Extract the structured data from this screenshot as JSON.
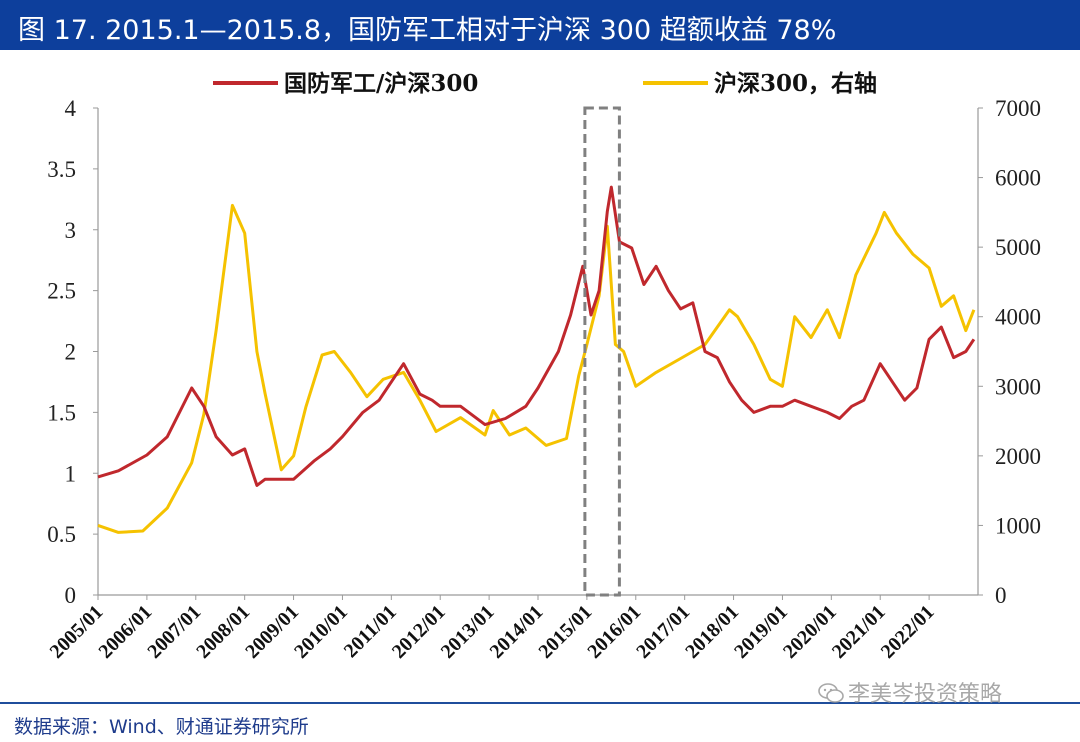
{
  "title": "图 17. 2015.1—2015.8，国防军工相对于沪深 300 超额收益 78%",
  "source": "数据来源：Wind、财通证券研究所",
  "watermark": "李美岑投资策略",
  "colors": {
    "title_bg": "#0d3f9c",
    "series_ratio": "#c0282d",
    "series_index": "#f5c200",
    "highlight_box": "#808080"
  },
  "chart_data": {
    "type": "line",
    "grid": false,
    "legend_position": "top",
    "x_tick_labels": [
      "2005/01",
      "2006/01",
      "2007/01",
      "2008/01",
      "2009/01",
      "2010/01",
      "2011/01",
      "2012/01",
      "2013/01",
      "2014/01",
      "2015/01",
      "2016/01",
      "2017/01",
      "2018/01",
      "2019/01",
      "2020/01",
      "2021/01",
      "2022/01"
    ],
    "x_range": [
      "2005/01",
      "2022/12"
    ],
    "y_left": {
      "ticks": [
        "0",
        "0.5",
        "1",
        "1.5",
        "2",
        "2.5",
        "3",
        "3.5",
        "4"
      ],
      "range": [
        0,
        4
      ]
    },
    "y_right": {
      "ticks": [
        "0",
        "1000",
        "2000",
        "3000",
        "4000",
        "5000",
        "6000",
        "7000"
      ],
      "range": [
        0,
        7000
      ]
    },
    "highlight_period": {
      "from": "2015/01",
      "to": "2015/08"
    },
    "series": [
      {
        "name": "国防军工/沪深300",
        "axis": "left",
        "x": [
          "2005/01",
          "2005/06",
          "2006/01",
          "2006/06",
          "2006/12",
          "2007/03",
          "2007/06",
          "2007/10",
          "2008/01",
          "2008/04",
          "2008/06",
          "2008/10",
          "2009/01",
          "2009/06",
          "2009/10",
          "2010/01",
          "2010/06",
          "2010/10",
          "2011/01",
          "2011/04",
          "2011/08",
          "2011/11",
          "2012/01",
          "2012/06",
          "2012/12",
          "2013/05",
          "2013/10",
          "2014/01",
          "2014/06",
          "2014/09",
          "2014/12",
          "2015/02",
          "2015/04",
          "2015/06",
          "2015/07",
          "2015/09",
          "2015/12",
          "2016/03",
          "2016/06",
          "2016/09",
          "2016/12",
          "2017/03",
          "2017/06",
          "2017/09",
          "2017/12",
          "2018/03",
          "2018/06",
          "2018/10",
          "2019/01",
          "2019/04",
          "2019/08",
          "2019/12",
          "2020/03",
          "2020/06",
          "2020/09",
          "2021/01",
          "2021/04",
          "2021/07",
          "2021/10",
          "2022/01",
          "2022/04",
          "2022/07",
          "2022/10",
          "2022/12"
        ],
        "y": [
          0.97,
          1.02,
          1.15,
          1.3,
          1.7,
          1.55,
          1.3,
          1.15,
          1.2,
          0.9,
          0.95,
          0.95,
          0.95,
          1.1,
          1.2,
          1.3,
          1.5,
          1.6,
          1.75,
          1.9,
          1.65,
          1.6,
          1.55,
          1.55,
          1.4,
          1.45,
          1.55,
          1.7,
          2.0,
          2.3,
          2.7,
          2.3,
          2.5,
          3.15,
          3.35,
          2.9,
          2.85,
          2.55,
          2.7,
          2.5,
          2.35,
          2.4,
          2.0,
          1.95,
          1.75,
          1.6,
          1.5,
          1.55,
          1.55,
          1.6,
          1.55,
          1.5,
          1.45,
          1.55,
          1.6,
          1.9,
          1.75,
          1.6,
          1.7,
          2.1,
          2.2,
          1.95,
          2.0,
          2.1
        ]
      },
      {
        "name": "沪深300，右轴",
        "axis": "right",
        "x": [
          "2005/01",
          "2005/06",
          "2005/12",
          "2006/06",
          "2006/12",
          "2007/03",
          "2007/06",
          "2007/10",
          "2008/01",
          "2008/04",
          "2008/06",
          "2008/10",
          "2009/01",
          "2009/04",
          "2009/08",
          "2009/11",
          "2010/03",
          "2010/07",
          "2010/11",
          "2011/04",
          "2011/08",
          "2011/12",
          "2012/06",
          "2012/12",
          "2013/02",
          "2013/06",
          "2013/10",
          "2014/03",
          "2014/08",
          "2014/11",
          "2015/01",
          "2015/04",
          "2015/06",
          "2015/08",
          "2015/10",
          "2016/01",
          "2016/06",
          "2016/12",
          "2017/06",
          "2017/12",
          "2018/02",
          "2018/06",
          "2018/10",
          "2019/01",
          "2019/04",
          "2019/08",
          "2019/12",
          "2020/03",
          "2020/07",
          "2020/12",
          "2021/02",
          "2021/05",
          "2021/09",
          "2022/01",
          "2022/04",
          "2022/07",
          "2022/10",
          "2022/12"
        ],
        "y": [
          1000,
          900,
          920,
          1250,
          1900,
          2600,
          3800,
          5600,
          5200,
          3500,
          2900,
          1800,
          2000,
          2700,
          3450,
          3500,
          3200,
          2850,
          3100,
          3200,
          2800,
          2350,
          2550,
          2300,
          2650,
          2300,
          2400,
          2150,
          2250,
          3150,
          3600,
          4300,
          5300,
          3600,
          3500,
          3000,
          3200,
          3400,
          3600,
          4100,
          4000,
          3600,
          3100,
          3000,
          4000,
          3700,
          4100,
          3700,
          4600,
          5200,
          5500,
          5200,
          4900,
          4700,
          4150,
          4300,
          3800,
          4100
        ]
      }
    ]
  }
}
